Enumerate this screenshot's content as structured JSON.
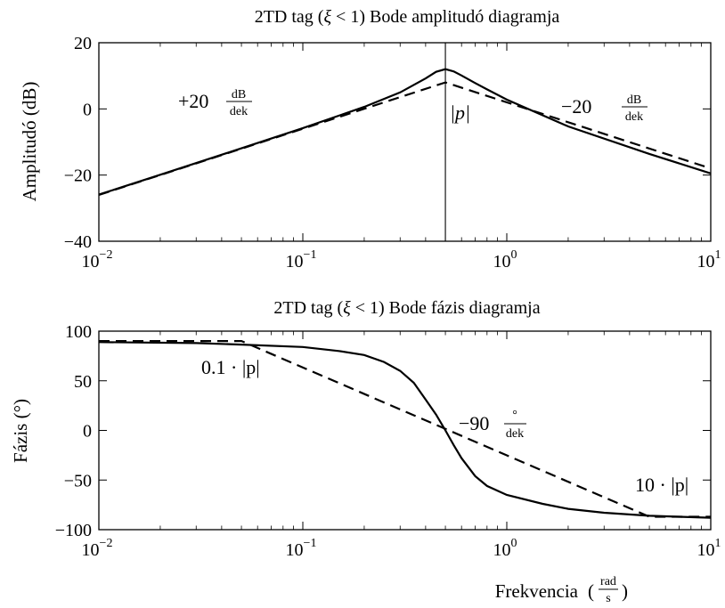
{
  "chart_data": [
    {
      "type": "line",
      "title": {
        "pre": "2TD tag (",
        "xi": "ξ",
        "mid": " < 1) Bode amplitudó diagramja"
      },
      "xlabel": "",
      "ylabel": "Amplitudó (dB)",
      "xscale": "log",
      "xlim": [
        0.01,
        10
      ],
      "ylim": [
        -40,
        20
      ],
      "xticks": [
        {
          "value": 0.01,
          "base": "10",
          "exp": "−2"
        },
        {
          "value": 0.1,
          "base": "10",
          "exp": "−1"
        },
        {
          "value": 1,
          "base": "10",
          "exp": "0"
        },
        {
          "value": 10,
          "base": "10",
          "exp": "1"
        }
      ],
      "yticks": [
        {
          "value": 20,
          "label": "20"
        },
        {
          "value": 0,
          "label": "0"
        },
        {
          "value": -20,
          "label": "−20"
        },
        {
          "value": -40,
          "label": "−40"
        }
      ],
      "grid": false,
      "series": [
        {
          "style": "solid",
          "x": [
            0.01,
            0.02,
            0.05,
            0.1,
            0.2,
            0.3,
            0.4,
            0.45,
            0.5,
            0.55,
            0.6,
            0.7,
            0.8,
            1,
            2,
            5,
            10
          ],
          "y": [
            -25.9,
            -19.9,
            -11.9,
            -5.8,
            0.6,
            5.0,
            9.2,
            11.2,
            12.0,
            11.3,
            10.1,
            7.8,
            5.9,
            2.8,
            -5.3,
            -13.6,
            -19.5
          ]
        },
        {
          "style": "dashed",
          "x": [
            0.01,
            0.5,
            10
          ],
          "y": [
            -26,
            8,
            -18
          ]
        }
      ],
      "vline": {
        "x": 0.5
      },
      "annotations": [
        {
          "text": "+20",
          "num": "dB",
          "den": "dek"
        },
        {
          "text": "|p|"
        },
        {
          "text": "−20",
          "num": "dB",
          "den": "dek"
        }
      ]
    },
    {
      "type": "line",
      "title": {
        "pre": "2TD tag (",
        "xi": "ξ",
        "mid": " < 1) Bode fázis diagramja"
      },
      "xlabel": {
        "text": "Frekvencia",
        "num": "rad",
        "den": "s"
      },
      "ylabel": "Fázis (°)",
      "xscale": "log",
      "xlim": [
        0.01,
        10
      ],
      "ylim": [
        -100,
        100
      ],
      "xticks": [
        {
          "value": 0.01,
          "base": "10",
          "exp": "−2"
        },
        {
          "value": 0.1,
          "base": "10",
          "exp": "−1"
        },
        {
          "value": 1,
          "base": "10",
          "exp": "0"
        },
        {
          "value": 10,
          "base": "10",
          "exp": "1"
        }
      ],
      "yticks": [
        {
          "value": 100,
          "label": "100"
        },
        {
          "value": 50,
          "label": "50"
        },
        {
          "value": 0,
          "label": "0"
        },
        {
          "value": -50,
          "label": "−50"
        },
        {
          "value": -100,
          "label": "−100"
        }
      ],
      "grid": false,
      "series": [
        {
          "style": "solid",
          "x": [
            0.01,
            0.03,
            0.05,
            0.1,
            0.15,
            0.2,
            0.25,
            0.3,
            0.35,
            0.4,
            0.45,
            0.5,
            0.55,
            0.6,
            0.7,
            0.8,
            1,
            1.5,
            2,
            3,
            5,
            7,
            10
          ],
          "y": [
            89,
            88,
            86.5,
            84,
            80,
            76,
            69,
            60,
            48,
            31,
            16,
            0,
            -15,
            -28,
            -46,
            -56,
            -65,
            -74,
            -79,
            -83,
            -86,
            -87,
            -88
          ]
        },
        {
          "style": "dashed",
          "x": [
            0.01,
            0.05,
            5,
            10
          ],
          "y": [
            90,
            90,
            -87,
            -87
          ]
        }
      ],
      "annotations": [
        {
          "text": "0.1 · |p|"
        },
        {
          "text": "−90",
          "num": "°",
          "den": "dek"
        },
        {
          "text": "10 · |p|"
        }
      ]
    }
  ]
}
